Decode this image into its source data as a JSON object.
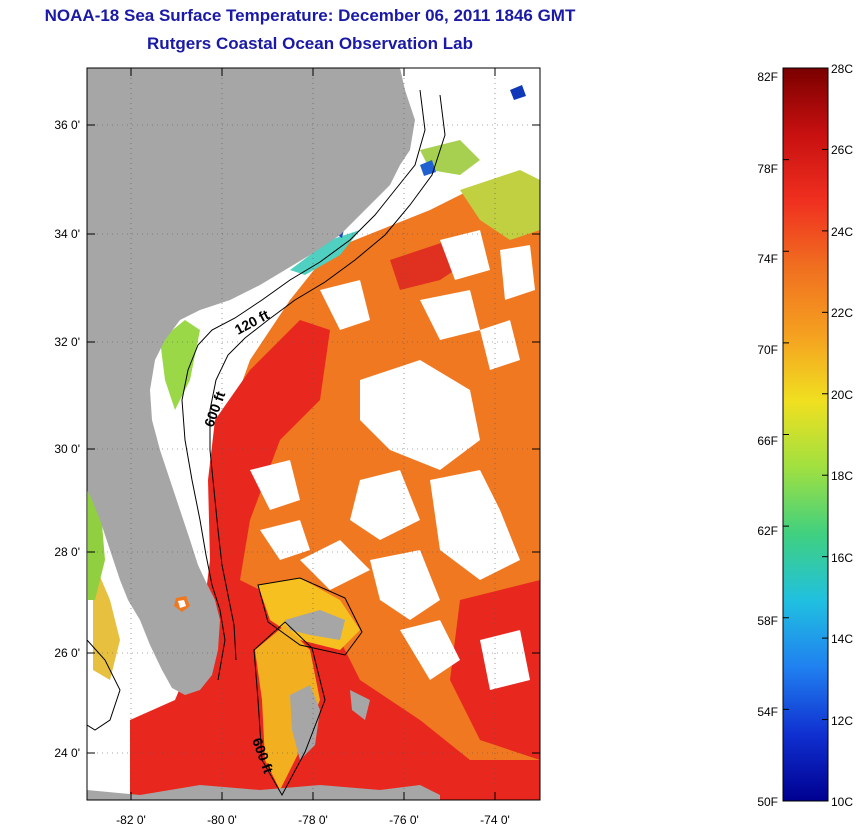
{
  "header": {
    "title": "NOAA-18 Sea Surface Temperature:  December 06, 2011 1846 GMT",
    "subtitle": "Rutgers Coastal Ocean Observation Lab"
  },
  "map": {
    "lat_ticks": [
      "36 0'",
      "34 0'",
      "32 0'",
      "30 0'",
      "28 0'",
      "26 0'",
      "24 0'"
    ],
    "lon_ticks": [
      "-82 0'",
      "-80 0'",
      "-78 0'",
      "-76 0'",
      "-74 0'"
    ],
    "contour_labels": [
      "120 ft",
      "600 ft",
      "600 ft"
    ],
    "colors": {
      "land": "#a6a6a6",
      "cloud": "#ffffff",
      "warm_red": "#e8281e",
      "orange": "#f07820",
      "yellow": "#f5c020",
      "green": "#90d040",
      "cyan": "#40d0c0",
      "blue": "#1040c0"
    }
  },
  "colorbar": {
    "fahrenheit_labels": [
      "82F",
      "78F",
      "74F",
      "70F",
      "66F",
      "62F",
      "58F",
      "54F",
      "50F"
    ],
    "celsius_labels": [
      "28C",
      "26C",
      "24C",
      "22C",
      "20C",
      "18C",
      "16C",
      "14C",
      "12C",
      "10C"
    ],
    "range_c": [
      10,
      28
    ],
    "range_f": [
      50,
      82
    ],
    "gradient_top_to_bottom": [
      "#7a0000",
      "#c81010",
      "#f03020",
      "#f07020",
      "#f5a020",
      "#f0e020",
      "#a0e040",
      "#40d080",
      "#20c0e0",
      "#2080f0",
      "#1030d0",
      "#000090"
    ]
  }
}
